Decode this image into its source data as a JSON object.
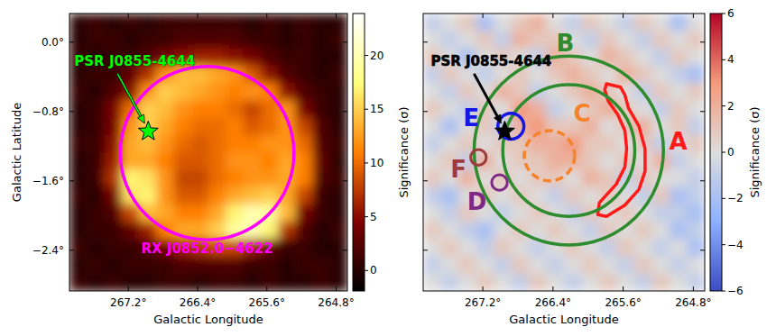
{
  "chart_data": [
    {
      "type": "heatmap",
      "xlabel": "Galactic Longitude",
      "ylabel": "Galactic Latitude",
      "xlim": [
        267.88,
        264.67
      ],
      "ylim": [
        -2.87,
        0.33
      ],
      "xticks": [
        {
          "value": 267.2,
          "label": "267.2°"
        },
        {
          "value": 266.4,
          "label": "266.4°"
        },
        {
          "value": 265.6,
          "label": "265.6°"
        },
        {
          "value": 264.8,
          "label": "264.8°"
        }
      ],
      "yticks": [
        {
          "value": 0,
          "label": "0.0°"
        },
        {
          "value": -0.8,
          "label": "−0.8°"
        },
        {
          "value": -1.6,
          "label": "−1.6°"
        },
        {
          "value": -2.4,
          "label": "−2.4°"
        }
      ],
      "tick_labels": true,
      "color": "afmhot",
      "cells": [
        [
          0,
          1,
          0,
          1,
          0,
          1,
          1,
          1,
          1,
          1,
          0,
          1,
          0,
          1,
          0,
          0
        ],
        [
          0,
          1,
          1,
          0,
          1,
          1,
          2,
          2,
          2,
          2,
          1,
          1,
          0,
          1,
          0,
          1
        ],
        [
          1,
          0,
          1,
          1,
          2,
          4,
          5,
          6,
          6,
          5,
          4,
          2,
          1,
          1,
          0,
          0
        ],
        [
          0,
          1,
          1,
          3,
          7,
          12,
          14,
          14,
          13,
          12,
          9,
          5,
          2,
          1,
          0,
          1
        ],
        [
          1,
          0,
          2,
          5,
          12,
          15,
          14,
          13,
          12,
          11,
          12,
          11,
          5,
          2,
          1,
          0
        ],
        [
          0,
          1,
          4,
          10,
          15,
          14,
          12,
          11,
          11,
          10,
          8,
          10,
          12,
          4,
          1,
          0
        ],
        [
          0,
          1,
          4,
          12,
          15,
          13,
          11,
          10,
          10,
          11,
          9,
          10,
          12,
          8,
          2,
          0
        ],
        [
          1,
          1,
          5,
          13,
          14,
          12,
          10,
          9,
          10,
          11,
          11,
          12,
          12,
          10,
          2,
          1
        ],
        [
          0,
          1,
          6,
          13,
          13,
          11,
          9,
          9,
          10,
          12,
          12,
          11,
          13,
          11,
          3,
          0
        ],
        [
          0,
          1,
          7,
          17,
          16,
          12,
          8,
          8,
          10,
          11,
          12,
          12,
          13,
          11,
          2,
          1
        ],
        [
          1,
          0,
          4,
          16,
          17,
          12,
          9,
          9,
          11,
          13,
          14,
          15,
          13,
          8,
          1,
          0
        ],
        [
          0,
          1,
          2,
          8,
          14,
          13,
          11,
          11,
          13,
          17,
          20,
          19,
          14,
          4,
          1,
          0
        ],
        [
          0,
          1,
          1,
          3,
          6,
          11,
          13,
          13,
          15,
          19,
          20,
          17,
          7,
          2,
          0,
          1
        ],
        [
          1,
          0,
          1,
          1,
          2,
          4,
          6,
          7,
          8,
          8,
          6,
          3,
          1,
          1,
          0,
          0
        ],
        [
          0,
          1,
          0,
          1,
          1,
          1,
          2,
          2,
          2,
          2,
          1,
          1,
          0,
          1,
          1,
          0
        ],
        [
          1,
          0,
          1,
          0,
          0,
          1,
          1,
          0,
          1,
          1,
          0,
          1,
          0,
          0,
          1,
          0
        ]
      ],
      "colorbar": {
        "label": "Significance (σ)",
        "range": [
          -1.9,
          23.9
        ],
        "ticks": [
          0,
          5,
          10,
          15,
          20
        ]
      },
      "regions": [
        {
          "label": "RX J0852.0−4622",
          "color": "#ff00ff",
          "line_style": "solid",
          "center": [
            266.29,
            -1.28
          ],
          "radii": [
            1.0
          ]
        }
      ],
      "source": {
        "label": "PSR J0855-4644",
        "position": [
          266.97,
          -1.03
        ],
        "color": "#00ff00",
        "marker": "star"
      }
    },
    {
      "type": "heatmap",
      "xlabel": "Galactic Longitude",
      "xlim": [
        267.88,
        264.67
      ],
      "ylim": [
        -2.87,
        0.33
      ],
      "xticks": [
        {
          "value": 267.2,
          "label": "267.2°"
        },
        {
          "value": 266.4,
          "label": "266.4°"
        },
        {
          "value": 265.6,
          "label": "265.6°"
        },
        {
          "value": 264.8,
          "label": "264.8°"
        }
      ],
      "yticks": [
        0,
        -0.8,
        -1.6,
        -2.4
      ],
      "tick_labels": "x",
      "color": "coolwarm",
      "cells": [
        [
          -1,
          0,
          1,
          -2,
          0,
          1,
          2,
          0,
          -1,
          1,
          0,
          -1,
          1,
          0,
          -2,
          0
        ],
        [
          0,
          -1,
          0,
          1,
          -1,
          2,
          1,
          1,
          0,
          -1,
          1,
          0,
          -1,
          1,
          0,
          1
        ],
        [
          1,
          0,
          -2,
          0,
          1,
          0,
          -1,
          2,
          1,
          0,
          2,
          1,
          0,
          -1,
          1,
          0
        ],
        [
          -1,
          1,
          0,
          -1,
          0,
          1,
          0,
          1,
          2,
          1,
          0,
          2,
          1,
          0,
          -1,
          -2
        ],
        [
          0,
          -1,
          1,
          0,
          2,
          1,
          -1,
          0,
          1,
          2,
          1,
          0,
          -1,
          1,
          0,
          1
        ],
        [
          1,
          0,
          -1,
          1,
          0,
          3,
          2,
          -1,
          0,
          1,
          2,
          1,
          0,
          -1,
          1,
          0
        ],
        [
          0,
          -2,
          0,
          1,
          -1,
          2,
          3,
          1,
          1,
          2,
          0,
          1,
          2,
          0,
          1,
          -1
        ],
        [
          -1,
          0,
          1,
          0,
          1,
          1,
          2,
          2,
          3,
          1,
          1,
          0,
          1,
          -1,
          0,
          1
        ],
        [
          0,
          1,
          -1,
          2,
          0,
          1,
          1,
          2,
          2,
          1,
          0,
          1,
          0,
          2,
          -1,
          0
        ],
        [
          1,
          0,
          2,
          0,
          1,
          0,
          1,
          1,
          0,
          2,
          1,
          -1,
          1,
          0,
          0,
          -1
        ],
        [
          -1,
          -2,
          0,
          1,
          0,
          1,
          0,
          -1,
          1,
          0,
          1,
          0,
          -1,
          1,
          -2,
          -1
        ],
        [
          0,
          -1,
          1,
          0,
          -1,
          0,
          1,
          0,
          -1,
          1,
          0,
          1,
          0,
          -1,
          -1,
          -2
        ],
        [
          1,
          0,
          -1,
          -2,
          0,
          1,
          0,
          1,
          0,
          -1,
          1,
          0,
          1,
          0,
          -2,
          -1
        ],
        [
          0,
          1,
          0,
          -1,
          1,
          0,
          -1,
          0,
          1,
          0,
          -1,
          1,
          0,
          -1,
          0,
          -2
        ],
        [
          -1,
          0,
          1,
          0,
          -1,
          1,
          0,
          -1,
          0,
          1,
          0,
          -1,
          1,
          0,
          -1,
          0
        ],
        [
          0,
          -1,
          0,
          1,
          0,
          -1,
          1,
          0,
          -1,
          0,
          1,
          0,
          -1,
          1,
          0,
          -1
        ]
      ],
      "colorbar": {
        "label": "Significance (σ)",
        "range": [
          -6,
          6
        ],
        "ticks": [
          {
            "value": -6,
            "label": "−6"
          },
          {
            "value": -4,
            "label": "−4"
          },
          {
            "value": -2,
            "label": "−2"
          },
          0,
          2,
          4,
          6
        ]
      },
      "regions": [
        {
          "label": "A",
          "color": "#ff1a1a",
          "line_style": "solid",
          "contour": [
            [
              265.79,
              -0.48
            ],
            [
              265.63,
              -0.52
            ],
            [
              265.58,
              -0.61
            ],
            [
              265.54,
              -0.76
            ],
            [
              265.42,
              -0.97
            ],
            [
              265.35,
              -1.23
            ],
            [
              265.35,
              -1.49
            ],
            [
              265.42,
              -1.7
            ],
            [
              265.58,
              -1.88
            ],
            [
              265.79,
              -2.01
            ],
            [
              265.89,
              -1.99
            ],
            [
              265.87,
              -1.85
            ],
            [
              265.68,
              -1.64
            ],
            [
              265.58,
              -1.44
            ],
            [
              265.56,
              -1.23
            ],
            [
              265.58,
              -1.02
            ],
            [
              265.66,
              -0.84
            ],
            [
              265.77,
              -0.68
            ],
            [
              265.81,
              -0.55
            ]
          ]
        },
        {
          "label": "B",
          "color": "#2e8b2e",
          "line_style": "solid",
          "center": [
            266.22,
            -1.25
          ],
          "radii": [
            1.09,
            0.76
          ]
        },
        {
          "label": "C",
          "color": "#f5832b",
          "line_style": "dashed",
          "center": [
            266.44,
            -1.31
          ],
          "radii": [
            0.29
          ]
        },
        {
          "label": "D",
          "color": "#7d2a85",
          "line_style": "solid",
          "center": [
            267.01,
            -1.62
          ],
          "radii": [
            0.09
          ]
        },
        {
          "label": "E",
          "color": "#1515e6",
          "line_style": "solid",
          "center": [
            266.88,
            -0.97
          ],
          "radii": [
            0.15
          ]
        },
        {
          "label": "F",
          "color": "#9e3b3b",
          "line_style": "solid",
          "center": [
            267.25,
            -1.33
          ],
          "radii": [
            0.09
          ]
        }
      ],
      "source": {
        "label": "PSR J0855-4644",
        "position": [
          266.95,
          -1.03
        ],
        "color": "#000000",
        "marker": "star"
      }
    }
  ]
}
